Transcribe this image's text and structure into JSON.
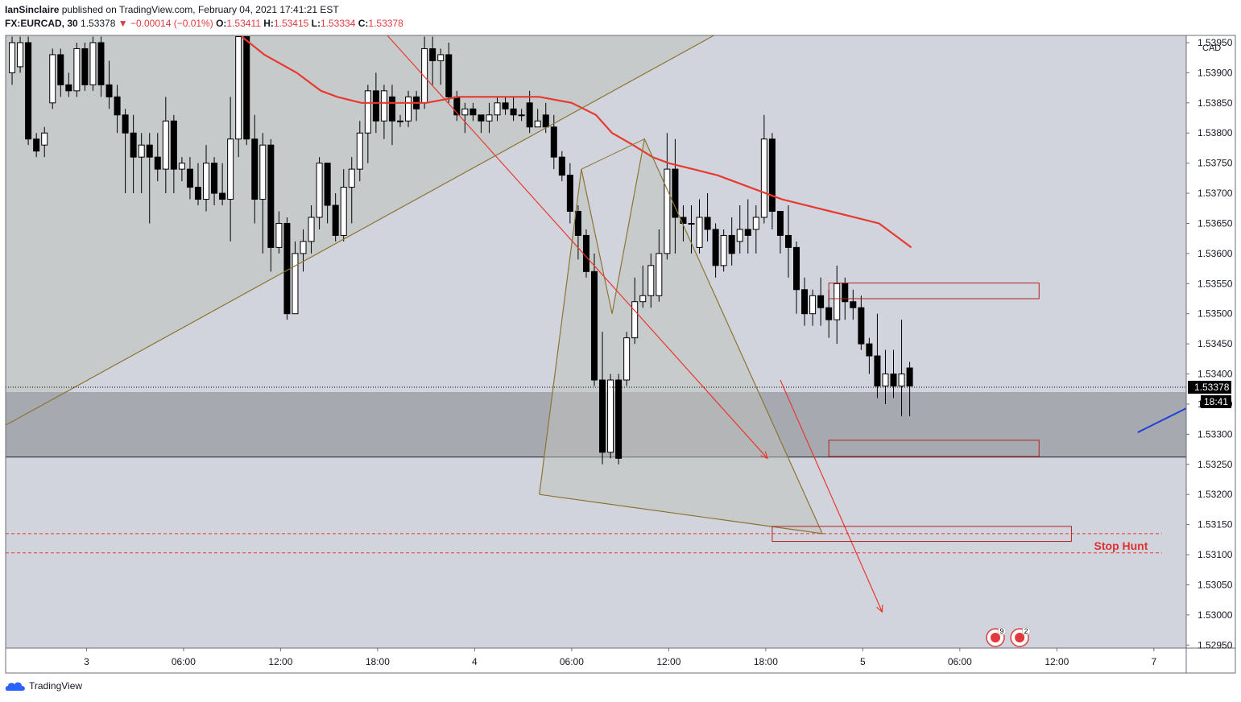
{
  "header": {
    "author": "IanSinclaire",
    "published_text": "published on TradingView.com, February 04, 2021 17:41:21 EST",
    "symbol": "FX:EURCAD, 30",
    "last": "1.53378",
    "change": "▼ −0.00014 (−0.01%)",
    "open_label": "O:",
    "open": "1.53411",
    "high_label": "H:",
    "high": "1.53415",
    "low_label": "L:",
    "low": "1.53334",
    "close_label": "C:",
    "close": "1.53378"
  },
  "footer": {
    "brand": "TradingView"
  },
  "colors": {
    "up": "#ffffff",
    "down": "#000000",
    "ma": "#e8392f",
    "trend": "#8c7432",
    "arrow": "#e8392f",
    "box": "#b22222",
    "zone": "#a6a9b0",
    "plot_bg": "#d1d4dc",
    "triangle": "#c0c1bc",
    "blue": "#1f3fd6"
  },
  "chart_data": {
    "type": "candlestick",
    "currency": "CAD",
    "y_ticks": [
      "1.53950",
      "1.53900",
      "1.53850",
      "1.53800",
      "1.53750",
      "1.53700",
      "1.53650",
      "1.53600",
      "1.53550",
      "1.53500",
      "1.53450",
      "1.53400",
      "1.53350",
      "1.53300",
      "1.53250",
      "1.53200",
      "1.53150",
      "1.53100",
      "1.53050",
      "1.53000",
      "1.52950"
    ],
    "y_range": [
      1.52945,
      1.53962
    ],
    "x_ticks": [
      "3",
      "06:00",
      "12:00",
      "18:00",
      "4",
      "06:00",
      "12:00",
      "18:00",
      "5",
      "06:00",
      "12:00",
      "7"
    ],
    "x_range": [
      0,
      73
    ],
    "last_price_label": "1.53378",
    "countdown_label": "18:41",
    "annotation": "Stop Hunt",
    "candles": [
      [
        0.4,
        1.539,
        1.5395,
        1.5388,
        1.5396
      ],
      [
        0.9,
        1.5391,
        1.5395,
        1.539,
        1.5396
      ],
      [
        1.4,
        1.5395,
        1.5379,
        1.5378,
        1.5396
      ],
      [
        1.9,
        1.5379,
        1.5377,
        1.5376,
        1.538
      ],
      [
        2.4,
        1.5378,
        1.538,
        1.5376,
        1.5381
      ],
      [
        2.9,
        1.5385,
        1.5393,
        1.5384,
        1.5394
      ],
      [
        3.4,
        1.5393,
        1.5388,
        1.5386,
        1.5394
      ],
      [
        3.9,
        1.5388,
        1.5387,
        1.5386,
        1.539
      ],
      [
        4.4,
        1.5387,
        1.5394,
        1.5386,
        1.5395
      ],
      [
        4.9,
        1.5394,
        1.5388,
        1.5387,
        1.5395
      ],
      [
        5.4,
        1.5388,
        1.5395,
        1.5387,
        1.5396
      ],
      [
        5.9,
        1.5395,
        1.5388,
        1.5386,
        1.5396
      ],
      [
        6.4,
        1.5388,
        1.5386,
        1.5384,
        1.5392
      ],
      [
        6.9,
        1.5386,
        1.5383,
        1.538,
        1.5388
      ],
      [
        7.4,
        1.5383,
        1.538,
        1.537,
        1.5384
      ],
      [
        7.9,
        1.538,
        1.5376,
        1.537,
        1.5383
      ],
      [
        8.4,
        1.5376,
        1.5378,
        1.537,
        1.538
      ],
      [
        8.9,
        1.5378,
        1.5376,
        1.5365,
        1.538
      ],
      [
        9.4,
        1.5376,
        1.5374,
        1.5372,
        1.538
      ],
      [
        9.9,
        1.5374,
        1.5382,
        1.537,
        1.5386
      ],
      [
        10.4,
        1.5382,
        1.5374,
        1.537,
        1.5383
      ],
      [
        10.9,
        1.5374,
        1.5375,
        1.5372,
        1.5376
      ],
      [
        11.4,
        1.5374,
        1.5371,
        1.5369,
        1.5376
      ],
      [
        11.9,
        1.5371,
        1.5369,
        1.5368,
        1.5375
      ],
      [
        12.4,
        1.5369,
        1.5375,
        1.5367,
        1.5378
      ],
      [
        12.9,
        1.5375,
        1.537,
        1.5368,
        1.5376
      ],
      [
        13.4,
        1.537,
        1.5369,
        1.5368,
        1.5375
      ],
      [
        13.9,
        1.5369,
        1.5379,
        1.5362,
        1.5386
      ],
      [
        14.4,
        1.5379,
        1.5396,
        1.5376,
        1.5396
      ],
      [
        14.9,
        1.5396,
        1.5379,
        1.5378,
        1.5396
      ],
      [
        15.4,
        1.5379,
        1.5369,
        1.5365,
        1.5383
      ],
      [
        15.9,
        1.5369,
        1.5378,
        1.536,
        1.538
      ],
      [
        16.4,
        1.5378,
        1.5361,
        1.5357,
        1.5379
      ],
      [
        16.9,
        1.5361,
        1.5365,
        1.536,
        1.5367
      ],
      [
        17.4,
        1.5365,
        1.535,
        1.5349,
        1.5366
      ],
      [
        17.9,
        1.535,
        1.536,
        1.535,
        1.5362
      ],
      [
        18.4,
        1.536,
        1.5362,
        1.5357,
        1.5364
      ],
      [
        18.9,
        1.5362,
        1.5366,
        1.536,
        1.5368
      ],
      [
        19.4,
        1.5366,
        1.5375,
        1.5364,
        1.5376
      ],
      [
        19.9,
        1.5375,
        1.5368,
        1.5365,
        1.5375
      ],
      [
        20.4,
        1.5368,
        1.5363,
        1.5362,
        1.537
      ],
      [
        20.9,
        1.5363,
        1.5371,
        1.5362,
        1.5374
      ],
      [
        21.4,
        1.5371,
        1.5374,
        1.5365,
        1.5376
      ],
      [
        21.9,
        1.5374,
        1.538,
        1.5372,
        1.5382
      ],
      [
        22.4,
        1.538,
        1.5387,
        1.5375,
        1.5388
      ],
      [
        22.9,
        1.5387,
        1.5382,
        1.538,
        1.539
      ],
      [
        23.4,
        1.5382,
        1.5387,
        1.5379,
        1.5388
      ],
      [
        23.9,
        1.5386,
        1.5382,
        1.5378,
        1.5388
      ],
      [
        24.4,
        1.5382,
        1.5382,
        1.5381,
        1.5383
      ],
      [
        24.9,
        1.5382,
        1.5386,
        1.5381,
        1.5387
      ],
      [
        25.4,
        1.5386,
        1.5384,
        1.5382,
        1.5387
      ],
      [
        25.9,
        1.5385,
        1.5394,
        1.5384,
        1.5396
      ],
      [
        26.4,
        1.5394,
        1.5392,
        1.5388,
        1.5396
      ],
      [
        26.9,
        1.5392,
        1.5393,
        1.5388,
        1.5394
      ],
      [
        27.4,
        1.5393,
        1.5386,
        1.5385,
        1.5395
      ],
      [
        27.9,
        1.5386,
        1.5383,
        1.5382,
        1.5387
      ],
      [
        28.4,
        1.5383,
        1.5384,
        1.538,
        1.5385
      ],
      [
        28.9,
        1.5384,
        1.5383,
        1.5382,
        1.5385
      ],
      [
        29.4,
        1.5383,
        1.5382,
        1.538,
        1.5383
      ],
      [
        29.9,
        1.5382,
        1.5383,
        1.538,
        1.5385
      ],
      [
        30.4,
        1.5383,
        1.5385,
        1.5382,
        1.5386
      ],
      [
        30.9,
        1.5385,
        1.5384,
        1.5383,
        1.5386
      ],
      [
        31.4,
        1.5384,
        1.5383,
        1.5382,
        1.5386
      ],
      [
        31.9,
        1.5383,
        1.5383,
        1.5382,
        1.5384
      ],
      [
        32.4,
        1.5385,
        1.5381,
        1.538,
        1.5387
      ],
      [
        32.9,
        1.5381,
        1.5382,
        1.5381,
        1.5384
      ],
      [
        33.4,
        1.5383,
        1.5381,
        1.538,
        1.5385
      ],
      [
        33.9,
        1.5381,
        1.5376,
        1.5374,
        1.5383
      ],
      [
        34.4,
        1.5376,
        1.5373,
        1.5372,
        1.5377
      ],
      [
        34.9,
        1.5373,
        1.5367,
        1.5365,
        1.5375
      ],
      [
        35.4,
        1.5367,
        1.5363,
        1.5359,
        1.5368
      ],
      [
        35.9,
        1.5363,
        1.5357,
        1.5356,
        1.5364
      ],
      [
        36.4,
        1.5357,
        1.5339,
        1.5338,
        1.536
      ],
      [
        36.9,
        1.5339,
        1.5327,
        1.5325,
        1.5347
      ],
      [
        37.4,
        1.5327,
        1.5339,
        1.5326,
        1.534
      ],
      [
        37.9,
        1.5339,
        1.5326,
        1.5325,
        1.534
      ],
      [
        38.4,
        1.5339,
        1.5346,
        1.5338,
        1.5347
      ],
      [
        38.9,
        1.5346,
        1.5352,
        1.5345,
        1.5356
      ],
      [
        39.4,
        1.5352,
        1.5353,
        1.5351,
        1.5358
      ],
      [
        39.9,
        1.5353,
        1.5358,
        1.5351,
        1.536
      ],
      [
        40.4,
        1.5353,
        1.536,
        1.5352,
        1.5364
      ],
      [
        40.9,
        1.536,
        1.5374,
        1.5359,
        1.538
      ],
      [
        41.4,
        1.5374,
        1.5366,
        1.536,
        1.5379
      ],
      [
        41.9,
        1.5366,
        1.5365,
        1.5362,
        1.5368
      ],
      [
        42.4,
        1.5365,
        1.5365,
        1.536,
        1.5368
      ],
      [
        42.9,
        1.5361,
        1.5366,
        1.536,
        1.5369
      ],
      [
        43.4,
        1.5366,
        1.5364,
        1.5362,
        1.537
      ],
      [
        43.9,
        1.5364,
        1.5358,
        1.5356,
        1.5365
      ],
      [
        44.4,
        1.5358,
        1.5363,
        1.5357,
        1.5364
      ],
      [
        44.9,
        1.5363,
        1.536,
        1.5358,
        1.5366
      ],
      [
        45.4,
        1.5362,
        1.5364,
        1.536,
        1.5368
      ],
      [
        45.9,
        1.5364,
        1.5363,
        1.536,
        1.5369
      ],
      [
        46.4,
        1.5364,
        1.5366,
        1.536,
        1.5368
      ],
      [
        46.9,
        1.5366,
        1.5379,
        1.5365,
        1.5383
      ],
      [
        47.4,
        1.5379,
        1.5367,
        1.5364,
        1.538
      ],
      [
        47.9,
        1.5367,
        1.5363,
        1.536,
        1.5367
      ],
      [
        48.4,
        1.5363,
        1.5361,
        1.5356,
        1.5368
      ],
      [
        48.9,
        1.5361,
        1.5354,
        1.535,
        1.5362
      ],
      [
        49.4,
        1.5354,
        1.535,
        1.5348,
        1.5356
      ],
      [
        49.9,
        1.535,
        1.5353,
        1.5348,
        1.5354
      ],
      [
        50.4,
        1.5353,
        1.5351,
        1.5348,
        1.5356
      ],
      [
        50.9,
        1.5351,
        1.5349,
        1.5346,
        1.5354
      ],
      [
        51.4,
        1.5349,
        1.5355,
        1.5345,
        1.5358
      ],
      [
        51.9,
        1.5355,
        1.5352,
        1.5349,
        1.5356
      ],
      [
        52.4,
        1.5352,
        1.5351,
        1.5349,
        1.5354
      ],
      [
        52.9,
        1.5351,
        1.5345,
        1.5344,
        1.5353
      ],
      [
        53.4,
        1.5345,
        1.5343,
        1.534,
        1.5346
      ],
      [
        53.9,
        1.5343,
        1.5338,
        1.5336,
        1.535
      ],
      [
        54.4,
        1.5338,
        1.534,
        1.5335,
        1.5344
      ],
      [
        54.9,
        1.534,
        1.5338,
        1.5336,
        1.5344
      ],
      [
        55.4,
        1.5338,
        1.534,
        1.5333,
        1.5349
      ],
      [
        55.9,
        1.5341,
        1.5338,
        1.5333,
        1.5342
      ]
    ],
    "moving_average": [
      [
        14.6,
        1.5396
      ],
      [
        16,
        1.5393
      ],
      [
        18,
        1.539
      ],
      [
        19.5,
        1.5387
      ],
      [
        20.5,
        1.5386
      ],
      [
        22,
        1.5385
      ],
      [
        24,
        1.5385
      ],
      [
        26,
        1.5385
      ],
      [
        28,
        1.5386
      ],
      [
        30,
        1.5386
      ],
      [
        33,
        1.5386
      ],
      [
        35,
        1.5385
      ],
      [
        36.5,
        1.5383
      ],
      [
        37.5,
        1.538
      ],
      [
        38.8,
        1.5378
      ],
      [
        40,
        1.5376
      ],
      [
        41,
        1.5375
      ],
      [
        42.5,
        1.5374
      ],
      [
        44,
        1.5373
      ],
      [
        45,
        1.5372
      ],
      [
        46,
        1.5371
      ],
      [
        47,
        1.537
      ],
      [
        48,
        1.5369
      ],
      [
        49.5,
        1.5368
      ],
      [
        51,
        1.5367
      ],
      [
        52.5,
        1.5366
      ],
      [
        54,
        1.5365
      ],
      [
        55,
        1.5363
      ],
      [
        56,
        1.5361
      ]
    ]
  }
}
